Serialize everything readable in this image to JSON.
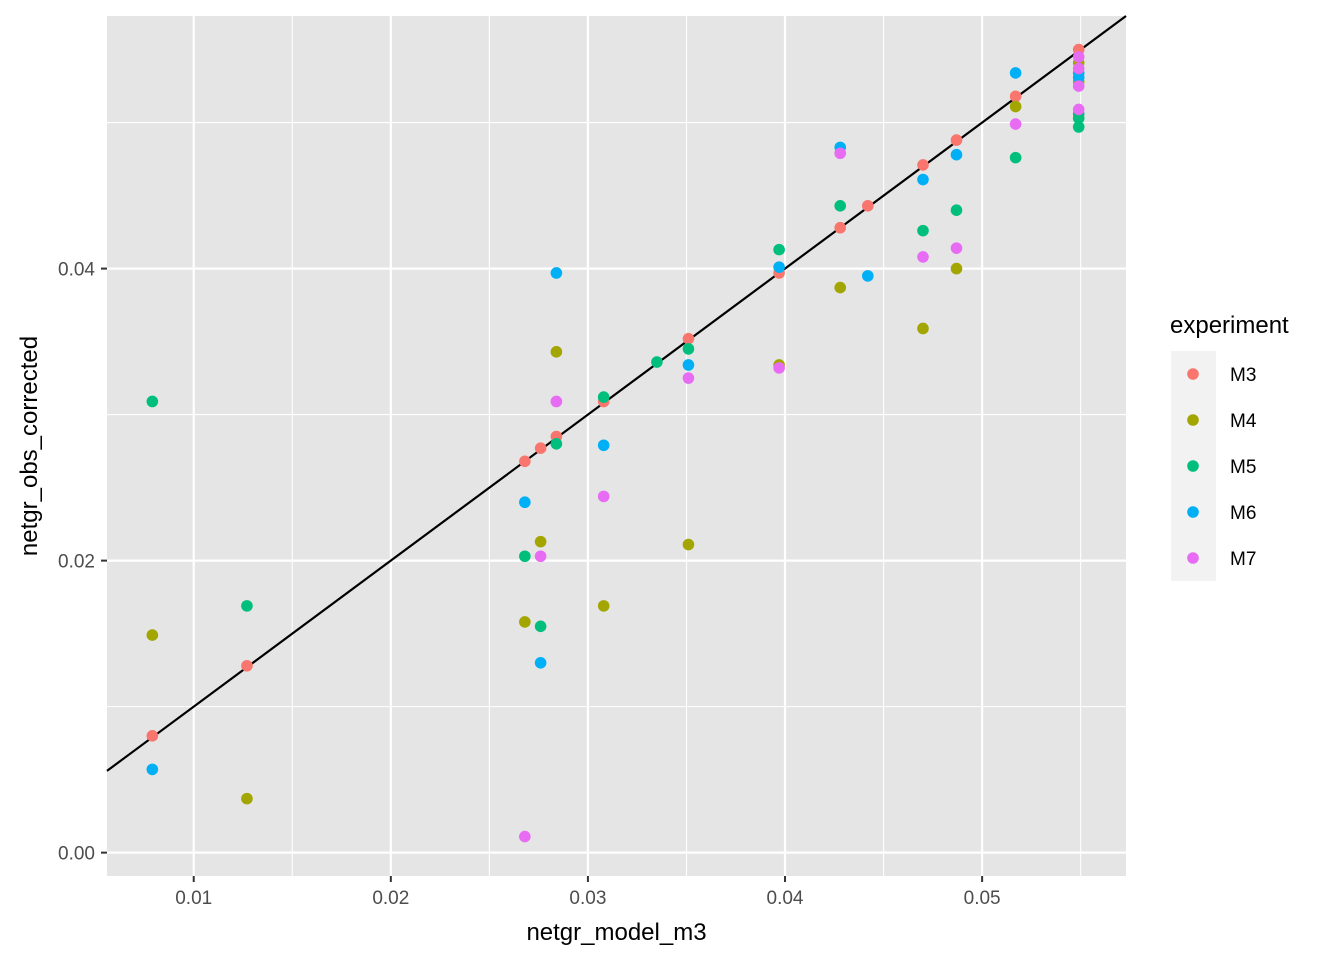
{
  "chart_data": {
    "type": "scatter",
    "xlabel": "netgr_model_m3",
    "ylabel": "netgr_obs_corrected",
    "xlim": [
      0.0056,
      0.0573
    ],
    "ylim": [
      -0.0016,
      0.0573
    ],
    "x_ticks": [
      0.01,
      0.02,
      0.03,
      0.04,
      0.05
    ],
    "x_tick_labels": [
      "0.01",
      "0.02",
      "0.03",
      "0.04",
      "0.05"
    ],
    "y_ticks": [
      0.0,
      0.02,
      0.04
    ],
    "y_tick_labels": [
      "0.00",
      "0.02",
      "0.04"
    ],
    "grid": true,
    "panel_background": "#e5e5e5",
    "legend_position": "right",
    "reference_line": {
      "type": "identity",
      "slope": 1,
      "intercept": 0,
      "color": "#000000"
    },
    "legend": {
      "title": "experiment",
      "entries": [
        {
          "label": "M3",
          "color": "#f8766d"
        },
        {
          "label": "M4",
          "color": "#a3a500"
        },
        {
          "label": "M5",
          "color": "#00bf7d"
        },
        {
          "label": "M6",
          "color": "#00b0f6"
        },
        {
          "label": "M7",
          "color": "#e76bf3"
        }
      ]
    },
    "series": [
      {
        "name": "M3",
        "color": "#f8766d",
        "points": [
          [
            0.0079,
            0.008
          ],
          [
            0.0127,
            0.0128
          ],
          [
            0.0268,
            0.0268
          ],
          [
            0.0276,
            0.0277
          ],
          [
            0.0284,
            0.0285
          ],
          [
            0.0308,
            0.0309
          ],
          [
            0.0351,
            0.0352
          ],
          [
            0.0397,
            0.0397
          ],
          [
            0.0428,
            0.0428
          ],
          [
            0.0442,
            0.0443
          ],
          [
            0.047,
            0.0471
          ],
          [
            0.0487,
            0.0488
          ],
          [
            0.0517,
            0.0518
          ],
          [
            0.0549,
            0.055
          ]
        ]
      },
      {
        "name": "M4",
        "color": "#a3a500",
        "points": [
          [
            0.0079,
            0.0149
          ],
          [
            0.0127,
            0.0037
          ],
          [
            0.0268,
            0.0158
          ],
          [
            0.0276,
            0.0213
          ],
          [
            0.0284,
            0.0343
          ],
          [
            0.0308,
            0.0169
          ],
          [
            0.0351,
            0.0211
          ],
          [
            0.0397,
            0.0334
          ],
          [
            0.0428,
            0.0387
          ],
          [
            0.047,
            0.0359
          ],
          [
            0.0487,
            0.04
          ],
          [
            0.0517,
            0.0511
          ],
          [
            0.0549,
            0.0528
          ],
          [
            0.0549,
            0.0541
          ]
        ]
      },
      {
        "name": "M5",
        "color": "#00bf7d",
        "points": [
          [
            0.0079,
            0.0309
          ],
          [
            0.0127,
            0.0169
          ],
          [
            0.0268,
            0.0203
          ],
          [
            0.0276,
            0.0155
          ],
          [
            0.0284,
            0.028
          ],
          [
            0.0308,
            0.0312
          ],
          [
            0.0335,
            0.0336
          ],
          [
            0.0351,
            0.0345
          ],
          [
            0.0397,
            0.0413
          ],
          [
            0.0428,
            0.0443
          ],
          [
            0.047,
            0.0426
          ],
          [
            0.0487,
            0.044
          ],
          [
            0.0517,
            0.0476
          ],
          [
            0.0549,
            0.0497
          ],
          [
            0.0549,
            0.0503
          ],
          [
            0.0549,
            0.0506
          ]
        ]
      },
      {
        "name": "M6",
        "color": "#00b0f6",
        "points": [
          [
            0.0079,
            0.0057
          ],
          [
            0.0268,
            0.024
          ],
          [
            0.0276,
            0.013
          ],
          [
            0.0284,
            0.0397
          ],
          [
            0.0308,
            0.0279
          ],
          [
            0.0351,
            0.0334
          ],
          [
            0.0397,
            0.0401
          ],
          [
            0.0428,
            0.0483
          ],
          [
            0.0442,
            0.0395
          ],
          [
            0.047,
            0.0461
          ],
          [
            0.0487,
            0.0478
          ],
          [
            0.0517,
            0.0534
          ],
          [
            0.0549,
            0.0531
          ],
          [
            0.0549,
            0.0534
          ]
        ]
      },
      {
        "name": "M7",
        "color": "#e76bf3",
        "points": [
          [
            0.0268,
            0.0011
          ],
          [
            0.0276,
            0.0203
          ],
          [
            0.0284,
            0.0309
          ],
          [
            0.0308,
            0.0244
          ],
          [
            0.0351,
            0.0325
          ],
          [
            0.0397,
            0.0332
          ],
          [
            0.0428,
            0.0479
          ],
          [
            0.047,
            0.0408
          ],
          [
            0.0487,
            0.0414
          ],
          [
            0.0517,
            0.0499
          ],
          [
            0.0549,
            0.0509
          ],
          [
            0.0549,
            0.0525
          ],
          [
            0.0549,
            0.0537
          ],
          [
            0.0549,
            0.0545
          ]
        ]
      }
    ]
  }
}
